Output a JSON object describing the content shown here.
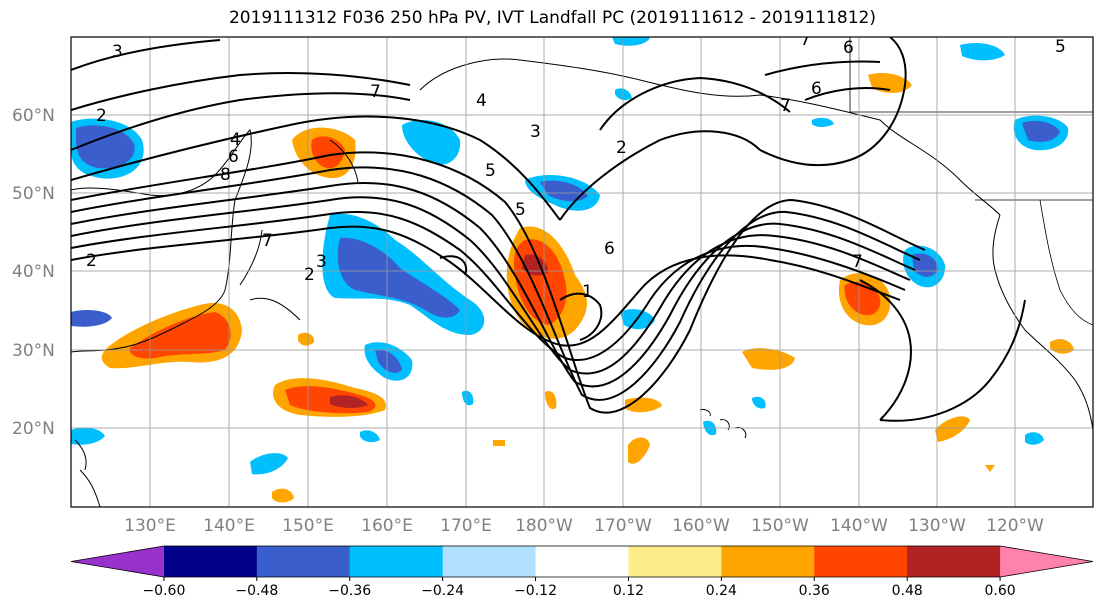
{
  "title": "2019111312 F036 250 hPa PV, IVT Landfall PC (2019111612 - 2019111812)",
  "lat_labels": [
    "60°N",
    "50°N",
    "40°N",
    "30°N",
    "20°N"
  ],
  "lon_labels": [
    "130°E",
    "140°E",
    "150°E",
    "160°E",
    "170°E",
    "180°W",
    "170°W",
    "160°W",
    "150°W",
    "140°W",
    "130°W",
    "120°W"
  ],
  "colorbar": {
    "colors": [
      "#9932CC",
      "#00008B",
      "#3A5FCD",
      "#00BFFF",
      "#B0E2FF",
      "#FFFFFF",
      "#FFEC8B",
      "#FFA500",
      "#FF4500",
      "#B22222",
      "#FF82AB"
    ],
    "tick_labels": [
      "−0.60",
      "−0.48",
      "−0.36",
      "−0.24",
      "−0.12",
      "0.12",
      "0.24",
      "0.36",
      "0.48",
      "0.60"
    ]
  },
  "contour_labels": [
    "3",
    "2",
    "7",
    "4",
    "6",
    "8",
    "2",
    "2",
    "3",
    "7",
    "4",
    "3",
    "5",
    "5",
    "2",
    "6",
    "1",
    "7",
    "6",
    "7",
    "6",
    "7",
    "5"
  ]
}
